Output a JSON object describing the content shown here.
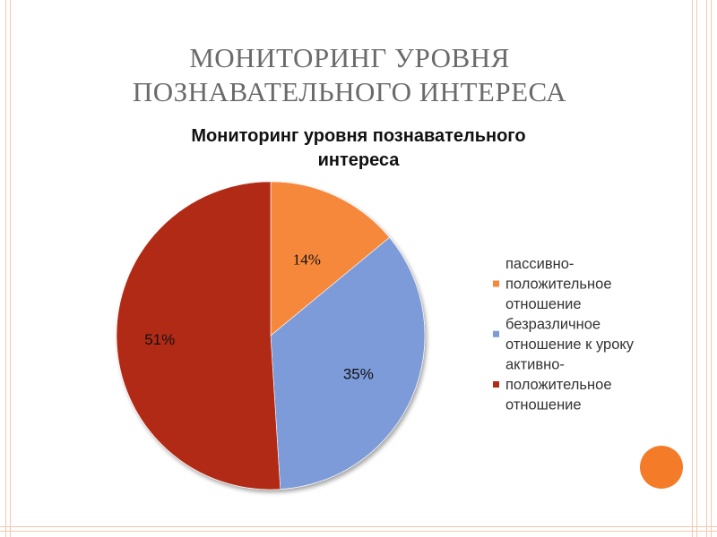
{
  "slide": {
    "title_line1": "МОНИТОРИНГ УРОВНЯ",
    "title_line2": "ПОЗНАВАТЕЛЬНОГО ИНТЕРЕСА",
    "accent_color": "#f5a06e",
    "decoration_circle_color": "#f47b28"
  },
  "chart_data": {
    "type": "pie",
    "title_lines": [
      "Мониторинг уровня познавательного",
      "интереса"
    ],
    "categories": [
      "пассивно-положительное отношение",
      "безразличное отношение к уроку",
      "активно-положительное отношение"
    ],
    "values": [
      14,
      35,
      51
    ],
    "data_labels": [
      "14%",
      "35%",
      "51%"
    ],
    "colors": [
      "#f6883a",
      "#7b9bd8",
      "#b12b16"
    ],
    "legend_position": "right",
    "legend": [
      {
        "lines": [
          "пассивно-",
          "положительное",
          "отношение"
        ]
      },
      {
        "lines": [
          "безразличное",
          "отношение к уроку"
        ]
      },
      {
        "lines": [
          "активно-",
          "положительное",
          "отношение"
        ]
      }
    ]
  }
}
